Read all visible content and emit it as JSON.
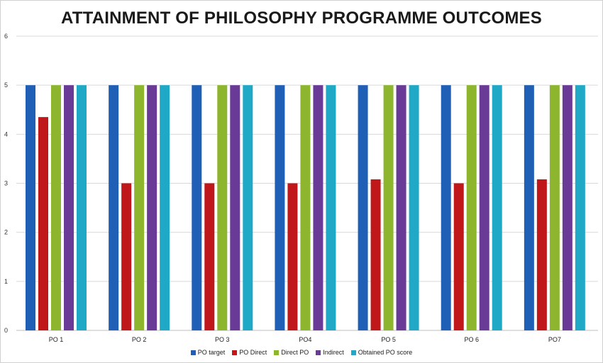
{
  "chart_data": {
    "type": "bar",
    "title": "ATTAINMENT OF PHILOSOPHY PROGRAMME OUTCOMES",
    "xlabel": "",
    "ylabel": "",
    "ylim": [
      0,
      6
    ],
    "yticks": [
      0,
      1,
      2,
      3,
      4,
      5,
      6
    ],
    "grid": true,
    "legend_position": "bottom",
    "categories": [
      "PO 1",
      "PO 2",
      "PO 3",
      "PO4",
      "PO 5",
      "PO 6",
      "PO7"
    ],
    "series": [
      {
        "name": "PO target",
        "color": "#1f5fb5",
        "values": [
          5,
          5,
          5,
          5,
          5,
          5,
          5
        ]
      },
      {
        "name": "PO Direct",
        "color": "#c0181a",
        "values": [
          4.35,
          3.0,
          3.0,
          3.0,
          3.08,
          3.0,
          3.08
        ]
      },
      {
        "name": "Direct PO",
        "color": "#8db62e",
        "values": [
          5,
          5,
          5,
          5,
          5,
          5,
          5
        ]
      },
      {
        "name": "Indirect",
        "color": "#6a3b96",
        "values": [
          5,
          5,
          5,
          5,
          5,
          5,
          5
        ]
      },
      {
        "name": "Obtained PO score",
        "color": "#20a9c7",
        "values": [
          5,
          5,
          5,
          5,
          5,
          5,
          5
        ]
      }
    ]
  }
}
